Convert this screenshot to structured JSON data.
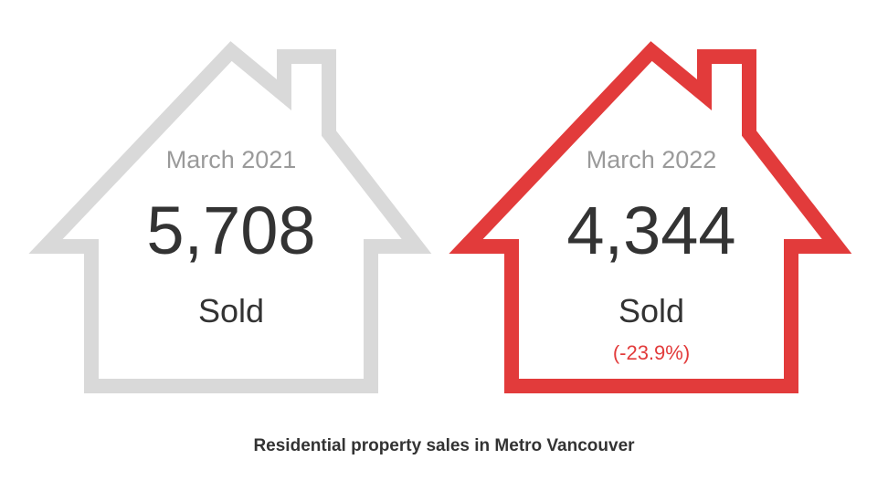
{
  "colors": {
    "house_2021": "#d9d9d9",
    "house_2022": "#e23b3b",
    "change_text": "#e23b3b",
    "text_dark": "#333333",
    "text_light": "#9a9a9a"
  },
  "houses": [
    {
      "period": "March 2021",
      "count": "5,708",
      "label": "Sold",
      "change": ""
    },
    {
      "period": "March 2022",
      "count": "4,344",
      "label": "Sold",
      "change": "(-23.9%)"
    }
  ],
  "caption": "Residential property sales in Metro Vancouver"
}
